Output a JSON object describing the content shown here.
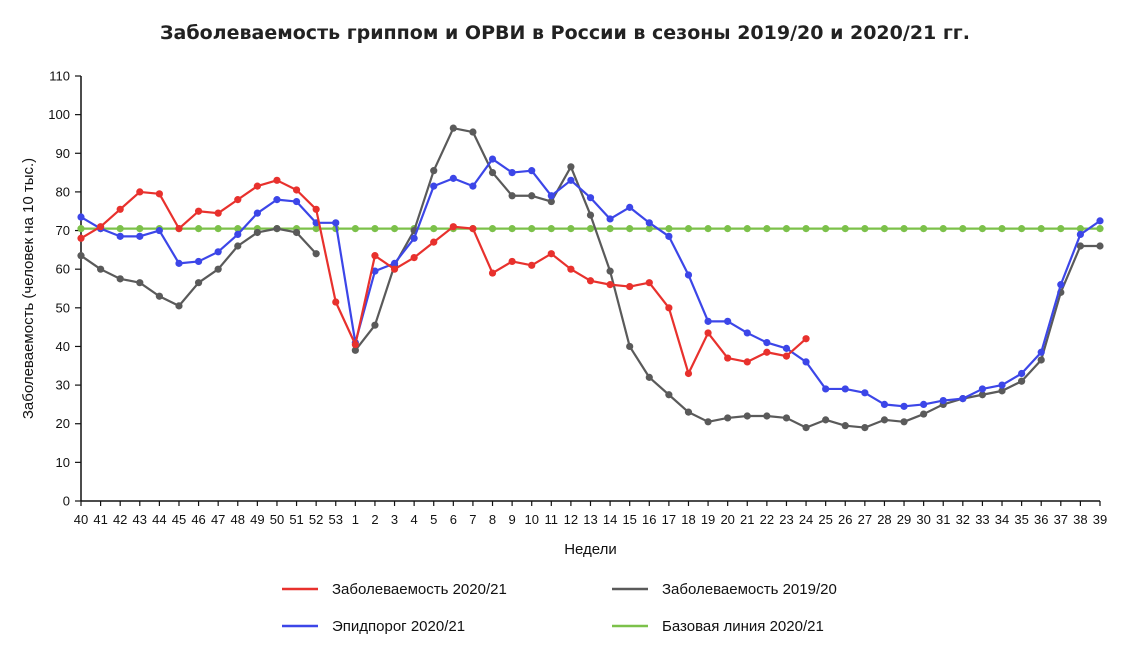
{
  "chart_data": {
    "type": "line",
    "title": "Заболеваемость гриппом и ОРВИ в России в сезоны 2019/20 и 2020/21 гг.",
    "xlabel": "Недели",
    "ylabel": "Заболеваемость (человек на 10 тыс.)",
    "ylim": [
      0,
      110
    ],
    "yticks": [
      "0",
      "10",
      "20",
      "30",
      "40",
      "50",
      "60",
      "70",
      "80",
      "90",
      "100",
      "110"
    ],
    "categories": [
      "40",
      "41",
      "42",
      "43",
      "44",
      "45",
      "46",
      "47",
      "48",
      "49",
      "50",
      "51",
      "52",
      "53",
      "1",
      "2",
      "3",
      "4",
      "5",
      "6",
      "7",
      "8",
      "9",
      "10",
      "11",
      "12",
      "13",
      "14",
      "15",
      "16",
      "17",
      "18",
      "19",
      "20",
      "21",
      "22",
      "23",
      "24",
      "25",
      "26",
      "27",
      "28",
      "29",
      "30",
      "31",
      "32",
      "33",
      "34",
      "35",
      "36",
      "37",
      "38",
      "39"
    ],
    "series": [
      {
        "name": "Заболеваемость 2020/21",
        "color": "#e8312d",
        "values": [
          68,
          71,
          75.5,
          80,
          79.5,
          70.5,
          75,
          74.5,
          78,
          81.5,
          83,
          80.5,
          75.5,
          51.5,
          40.5,
          63.5,
          60,
          63,
          67,
          71,
          70.5,
          59,
          62,
          61,
          64,
          60,
          57,
          56,
          55.5,
          56.5,
          50,
          33,
          43.5,
          37,
          36,
          38.5,
          37.5,
          42,
          null,
          null,
          null,
          null,
          null,
          null,
          null,
          null,
          null,
          null,
          null,
          null,
          null,
          null,
          null
        ]
      },
      {
        "name": "Заболеваемость 2019/20",
        "color": "#5a5a5a",
        "values": [
          63.5,
          60,
          57.5,
          56.5,
          53,
          50.5,
          56.5,
          60,
          66,
          69.5,
          70.5,
          69.5,
          64,
          null,
          39,
          45.5,
          61,
          70,
          85.5,
          96.5,
          95.5,
          85,
          79,
          79,
          77.5,
          86.5,
          74,
          59.5,
          40,
          32,
          27.5,
          23,
          20.5,
          21.5,
          22,
          22,
          21.5,
          19,
          21,
          19.5,
          19,
          21,
          20.5,
          22.5,
          25,
          26.5,
          27.5,
          28.5,
          31,
          36.5,
          54,
          66,
          66
        ]
      },
      {
        "name": "Эпидпорог 2020/21",
        "color": "#3c46e8",
        "values": [
          73.5,
          70.5,
          68.5,
          68.5,
          70,
          61.5,
          62,
          64.5,
          69,
          74.5,
          78,
          77.5,
          72,
          72,
          41,
          59.5,
          61.5,
          68,
          81.5,
          83.5,
          81.5,
          88.5,
          85,
          85.5,
          79,
          83,
          78.5,
          73,
          76,
          72,
          68.5,
          58.5,
          46.5,
          46.5,
          43.5,
          41,
          39.5,
          36,
          29,
          29,
          28,
          25,
          24.5,
          25,
          26,
          26.5,
          29,
          30,
          33,
          38.5,
          56,
          69,
          72.5
        ]
      },
      {
        "name": "Базовая линия 2020/21",
        "color": "#7cc14a",
        "values": [
          70.5,
          70.5,
          70.5,
          70.5,
          70.5,
          70.5,
          70.5,
          70.5,
          70.5,
          70.5,
          70.5,
          70.5,
          70.5,
          70.5,
          70.5,
          70.5,
          70.5,
          70.5,
          70.5,
          70.5,
          70.5,
          70.5,
          70.5,
          70.5,
          70.5,
          70.5,
          70.5,
          70.5,
          70.5,
          70.5,
          70.5,
          70.5,
          70.5,
          70.5,
          70.5,
          70.5,
          70.5,
          70.5,
          70.5,
          70.5,
          70.5,
          70.5,
          70.5,
          70.5,
          70.5,
          70.5,
          70.5,
          70.5,
          70.5,
          70.5,
          70.5,
          70.5,
          70.5
        ]
      }
    ],
    "legend": [
      {
        "label": "Заболеваемость 2020/21",
        "color": "#e8312d"
      },
      {
        "label": "Заболеваемость 2019/20",
        "color": "#5a5a5a"
      },
      {
        "label": "Эпидпорог 2020/21",
        "color": "#3c46e8"
      },
      {
        "label": "Базовая линия 2020/21",
        "color": "#7cc14a"
      }
    ],
    "legend_position": "bottom",
    "grid": false
  }
}
